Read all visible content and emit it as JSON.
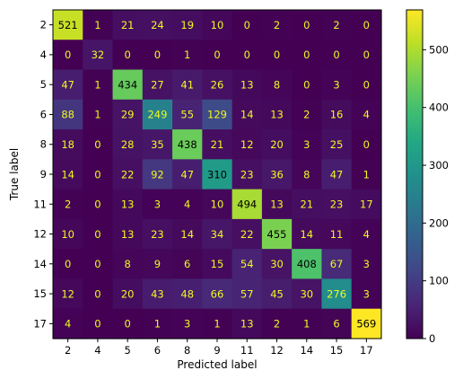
{
  "chart_data": {
    "type": "heatmap",
    "title": "",
    "xlabel": "Predicted label",
    "ylabel": "True label",
    "x_categories": [
      "2",
      "4",
      "5",
      "6",
      "8",
      "9",
      "11",
      "12",
      "14",
      "15",
      "17"
    ],
    "y_categories": [
      "2",
      "4",
      "5",
      "6",
      "8",
      "9",
      "11",
      "12",
      "14",
      "15",
      "17"
    ],
    "matrix": [
      [
        521,
        1,
        21,
        24,
        19,
        10,
        0,
        2,
        0,
        2,
        0
      ],
      [
        0,
        32,
        0,
        0,
        1,
        0,
        0,
        0,
        0,
        0,
        0
      ],
      [
        47,
        1,
        434,
        27,
        41,
        26,
        13,
        8,
        0,
        3,
        0
      ],
      [
        88,
        1,
        29,
        249,
        55,
        129,
        14,
        13,
        2,
        16,
        4
      ],
      [
        18,
        0,
        28,
        35,
        438,
        21,
        12,
        20,
        3,
        25,
        0
      ],
      [
        14,
        0,
        22,
        92,
        47,
        310,
        23,
        36,
        8,
        47,
        1
      ],
      [
        2,
        0,
        13,
        3,
        4,
        10,
        494,
        13,
        21,
        23,
        17
      ],
      [
        10,
        0,
        13,
        23,
        14,
        34,
        22,
        455,
        14,
        11,
        4
      ],
      [
        0,
        0,
        8,
        9,
        6,
        15,
        54,
        30,
        408,
        67,
        3
      ],
      [
        12,
        0,
        20,
        43,
        48,
        66,
        57,
        45,
        30,
        276,
        3
      ],
      [
        4,
        0,
        0,
        1,
        3,
        1,
        13,
        2,
        1,
        6,
        569
      ]
    ],
    "colormap": "viridis",
    "vmin": 0,
    "vmax": 569,
    "colorbar_ticks": [
      0,
      100,
      200,
      300,
      400,
      500
    ],
    "text_color_dark": "#000000",
    "text_color_light": "#f0f921",
    "grid": false
  }
}
